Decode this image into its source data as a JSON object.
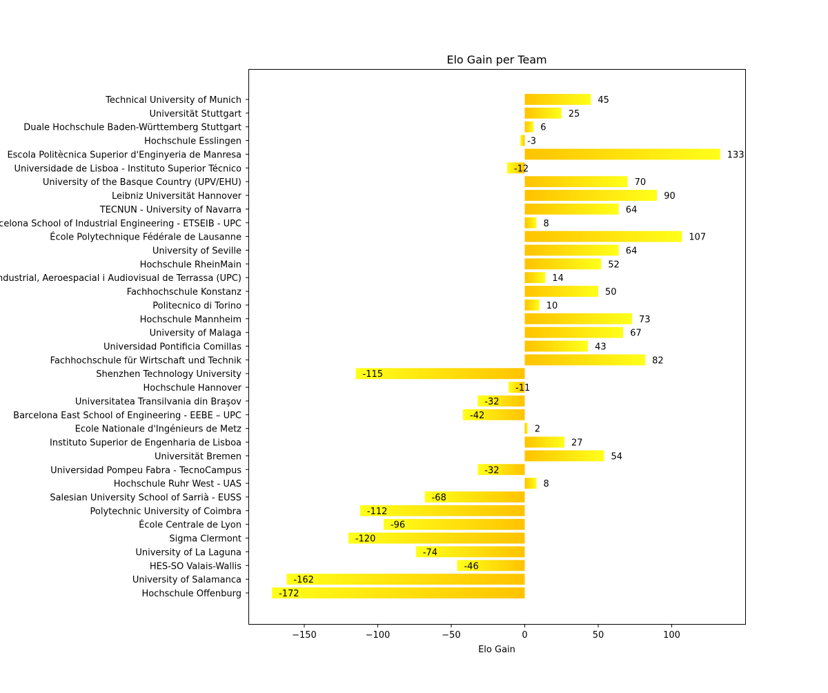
{
  "chart_data": {
    "type": "bar",
    "orientation": "horizontal",
    "title": "Elo Gain per Team",
    "xlabel": "Elo Gain",
    "ylabel": "",
    "xlim": [
      -188,
      150
    ],
    "xticks": [
      -150,
      -100,
      -50,
      0,
      50,
      100
    ],
    "xtick_labels": [
      "−150",
      "−100",
      "−50",
      "0",
      "50",
      "100"
    ],
    "grid": false,
    "colors": {
      "gold": "#FFC300",
      "yellow": "#FFFF1A"
    },
    "categories": [
      "Technical University of Munich",
      "Universität Stuttgart",
      "Duale Hochschule Baden-Württemberg Stuttgart",
      "Hochschule Esslingen",
      "Escola Politècnica Superior d'Enginyeria de Manresa",
      "Universidade de Lisboa - Instituto Superior Técnico",
      "University of the Basque Country (UPV/EHU)",
      "Leibniz Universität Hannover",
      "TECNUN - University of Navarra",
      "Barcelona School of Industrial Engineering - ETSEIB - UPC",
      "École Polytechnique Fédérale de Lausanne",
      "University of Seville",
      "Hochschule RheinMain",
      "Escola Superior d'Enginyeries Industrial, Aeroespacial i Audiovisual de Terrassa (UPC)",
      "Fachhochschule Konstanz",
      "Politecnico di Torino",
      "Hochschule Mannheim",
      "University of Malaga",
      "Universidad Pontificia Comillas",
      "Fachhochschule für Wirtschaft und Technik",
      "Shenzhen Technology University",
      "Hochschule Hannover",
      "Universitatea Transilvania din Braşov",
      "Barcelona East School of Engineering - EEBE – UPC",
      "Ecole Nationale d'Ingénieurs de Metz",
      "Instituto Superior de Engenharia de Lisboa",
      "Universität Bremen",
      "Universidad Pompeu Fabra - TecnoCampus",
      "Hochschule Ruhr West - UAS",
      "Salesian University School of Sarrià - EUSS",
      "Polytechnic University of Coimbra",
      "École Centrale de Lyon",
      "Sigma Clermont",
      "University of La Laguna",
      "HES-SO Valais-Wallis",
      "University of Salamanca",
      "Hochschule Offenburg"
    ],
    "values": [
      45,
      25,
      6,
      -3,
      133,
      -12,
      70,
      90,
      64,
      8,
      107,
      64,
      52,
      14,
      50,
      10,
      73,
      67,
      43,
      82,
      -115,
      -11,
      -32,
      -42,
      2,
      27,
      54,
      -32,
      8,
      -68,
      -112,
      -96,
      -120,
      -74,
      -46,
      -162,
      -172
    ]
  }
}
